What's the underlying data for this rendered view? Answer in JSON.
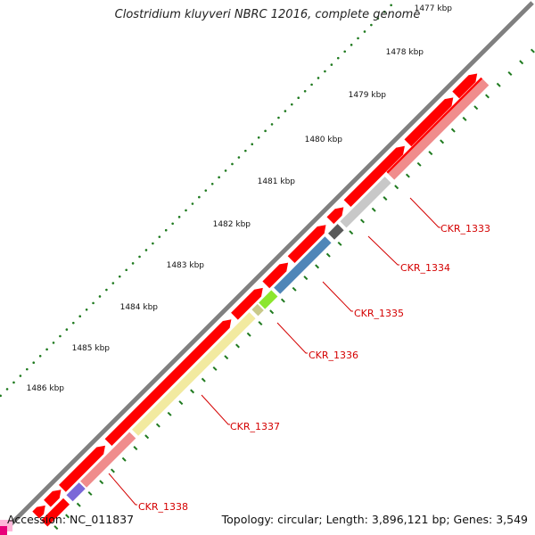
{
  "title": "Clostridium kluyveri NBRC 12016, complete genome",
  "footer": {
    "accession": "Accession: NC_011837",
    "summary": "Topology: circular; Length: 3,896,121 bp; Genes: 3,549"
  },
  "colors": {
    "background": "#ffffff",
    "backbone": "#808080",
    "cds": "#ff0000",
    "ruler_dots": "#1f7a1f",
    "label_text": "#d40000"
  },
  "ruler_ticks": [
    "1477 kbp",
    "1478 kbp",
    "1479 kbp",
    "1480 kbp",
    "1481 kbp",
    "1482 kbp",
    "1483 kbp",
    "1484 kbp",
    "1485 kbp",
    "1486 kbp"
  ],
  "genes": [
    {
      "name": "CKR_1333",
      "color": "#c8c8c8"
    },
    {
      "name": "CKR_1334",
      "color": "#595959"
    },
    {
      "name": "CKR_1335",
      "color": "#4f86b8"
    },
    {
      "name": "CKR_1336",
      "color": "#8ce62e"
    },
    {
      "name": "CKR_1337",
      "color": "#f2eaa0"
    },
    {
      "name": "CKR_1338",
      "color": "#f08c8c"
    }
  ]
}
